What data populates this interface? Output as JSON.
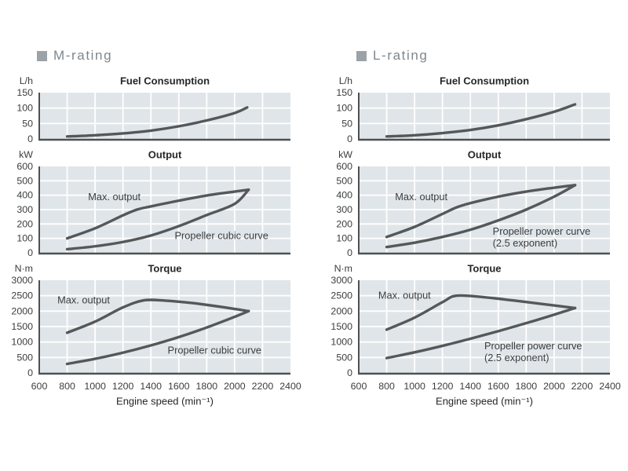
{
  "sections": [
    {
      "header": "M-rating"
    },
    {
      "header": "L-rating"
    }
  ],
  "x_axis": {
    "title": "Engine speed (min⁻¹)",
    "min": 600,
    "max": 2400,
    "ticks": [
      600,
      800,
      1000,
      1200,
      1400,
      1600,
      1800,
      2000,
      2200,
      2400
    ]
  },
  "colors": {
    "plot_bg": "#e0e5e9",
    "grid": "#ffffff",
    "curve": "#54585a",
    "axis": "#4d5153",
    "title": "#242628",
    "tick": "#3a3d3f",
    "annotation": "#3a3d3f",
    "header_text": "#7e878d",
    "header_marker": "#9ba3a9"
  },
  "chart_data": [
    {
      "id": "m-fuel",
      "column": "M-rating",
      "row": 0,
      "type": "line",
      "title": "Fuel Consumption",
      "ylabel": "L/h",
      "xlabel": "Engine speed (min⁻¹)",
      "ylim": [
        0,
        150
      ],
      "yticks": [
        0,
        50,
        100,
        150
      ],
      "xlim": [
        600,
        2400
      ],
      "grid": true,
      "series": [
        {
          "key": "fuel_consumption",
          "name": "Fuel consumption",
          "points": [
            [
              800,
              8
            ],
            [
              1000,
              12
            ],
            [
              1200,
              18
            ],
            [
              1400,
              27
            ],
            [
              1600,
              41
            ],
            [
              1800,
              60
            ],
            [
              2000,
              84
            ],
            [
              2090,
              102
            ]
          ]
        }
      ],
      "annotations": []
    },
    {
      "id": "m-output",
      "column": "M-rating",
      "row": 1,
      "type": "line",
      "title": "Output",
      "ylabel": "kW",
      "xlabel": "Engine speed (min⁻¹)",
      "ylim": [
        0,
        600
      ],
      "yticks": [
        0,
        100,
        200,
        300,
        400,
        500,
        600
      ],
      "xlim": [
        600,
        2400
      ],
      "grid": true,
      "series": [
        {
          "key": "max_output",
          "name": "Max. output",
          "points": [
            [
              800,
              100
            ],
            [
              1000,
              170
            ],
            [
              1200,
              260
            ],
            [
              1300,
              300
            ],
            [
              1400,
              322
            ],
            [
              1600,
              362
            ],
            [
              1800,
              398
            ],
            [
              2000,
              425
            ],
            [
              2100,
              438
            ]
          ]
        },
        {
          "key": "propeller_cubic",
          "name": "Propeller cubic curve",
          "points": [
            [
              800,
              25
            ],
            [
              1000,
              45
            ],
            [
              1200,
              75
            ],
            [
              1400,
              120
            ],
            [
              1600,
              185
            ],
            [
              1800,
              262
            ],
            [
              2000,
              340
            ],
            [
              2100,
              438
            ]
          ]
        }
      ],
      "annotations": [
        {
          "lines": [
            "Max. output"
          ],
          "x": 950,
          "y": 390
        },
        {
          "lines": [
            "Propeller cubic curve"
          ],
          "x": 1570,
          "y": 120
        }
      ]
    },
    {
      "id": "m-torque",
      "column": "M-rating",
      "row": 2,
      "type": "line",
      "title": "Torque",
      "ylabel": "N·m",
      "xlabel": "Engine speed (min⁻¹)",
      "ylim": [
        0,
        3000
      ],
      "yticks": [
        0,
        500,
        1000,
        1500,
        2000,
        2500,
        3000
      ],
      "xlim": [
        600,
        2400
      ],
      "grid": true,
      "series": [
        {
          "key": "max_output",
          "name": "Max. output",
          "points": [
            [
              800,
              1300
            ],
            [
              1000,
              1660
            ],
            [
              1200,
              2120
            ],
            [
              1350,
              2350
            ],
            [
              1500,
              2340
            ],
            [
              1700,
              2260
            ],
            [
              1900,
              2140
            ],
            [
              2100,
              2000
            ]
          ]
        },
        {
          "key": "propeller_cubic",
          "name": "Propeller cubic curve",
          "points": [
            [
              800,
              290
            ],
            [
              1000,
              455
            ],
            [
              1200,
              655
            ],
            [
              1400,
              890
            ],
            [
              1600,
              1160
            ],
            [
              1800,
              1470
            ],
            [
              2000,
              1815
            ],
            [
              2100,
              2000
            ]
          ]
        }
      ],
      "annotations": [
        {
          "lines": [
            "Max. output"
          ],
          "x": 730,
          "y": 2360
        },
        {
          "lines": [
            "Propeller cubic curve"
          ],
          "x": 1520,
          "y": 740
        }
      ]
    },
    {
      "id": "l-fuel",
      "column": "L-rating",
      "row": 0,
      "type": "line",
      "title": "Fuel Consumption",
      "ylabel": "L/h",
      "xlabel": "Engine speed (min⁻¹)",
      "ylim": [
        0,
        150
      ],
      "yticks": [
        0,
        50,
        100,
        150
      ],
      "xlim": [
        600,
        2400
      ],
      "grid": true,
      "series": [
        {
          "key": "fuel_consumption",
          "name": "Fuel consumption",
          "points": [
            [
              800,
              8
            ],
            [
              1000,
              12
            ],
            [
              1200,
              19
            ],
            [
              1400,
              29
            ],
            [
              1600,
              44
            ],
            [
              1800,
              64
            ],
            [
              2000,
              88
            ],
            [
              2150,
              112
            ]
          ]
        }
      ],
      "annotations": []
    },
    {
      "id": "l-output",
      "column": "L-rating",
      "row": 1,
      "type": "line",
      "title": "Output",
      "ylabel": "kW",
      "xlabel": "Engine speed (min⁻¹)",
      "ylim": [
        0,
        600
      ],
      "yticks": [
        0,
        100,
        200,
        300,
        400,
        500,
        600
      ],
      "xlim": [
        600,
        2400
      ],
      "grid": true,
      "series": [
        {
          "key": "max_output",
          "name": "Max. output",
          "points": [
            [
              800,
              110
            ],
            [
              1000,
              180
            ],
            [
              1200,
              270
            ],
            [
              1300,
              315
            ],
            [
              1400,
              345
            ],
            [
              1600,
              390
            ],
            [
              1800,
              425
            ],
            [
              2000,
              452
            ],
            [
              2150,
              470
            ]
          ]
        },
        {
          "key": "propeller_power",
          "name": "Propeller power curve (2.5 exponent)",
          "points": [
            [
              800,
              40
            ],
            [
              1000,
              70
            ],
            [
              1200,
              110
            ],
            [
              1400,
              160
            ],
            [
              1600,
              225
            ],
            [
              1800,
              300
            ],
            [
              2000,
              390
            ],
            [
              2150,
              470
            ]
          ]
        }
      ],
      "annotations": [
        {
          "lines": [
            "Max. output"
          ],
          "x": 860,
          "y": 390
        },
        {
          "lines": [
            "Propeller power curve",
            "(2.5 exponent)"
          ],
          "x": 1560,
          "y": 150
        }
      ]
    },
    {
      "id": "l-torque",
      "column": "L-rating",
      "row": 2,
      "type": "line",
      "title": "Torque",
      "ylabel": "N·m",
      "xlabel": "Engine speed (min⁻¹)",
      "ylim": [
        0,
        3000
      ],
      "yticks": [
        0,
        500,
        1000,
        1500,
        2000,
        2500,
        3000
      ],
      "xlim": [
        600,
        2400
      ],
      "grid": true,
      "series": [
        {
          "key": "max_output",
          "name": "Max. output",
          "points": [
            [
              800,
              1400
            ],
            [
              1000,
              1790
            ],
            [
              1200,
              2290
            ],
            [
              1300,
              2500
            ],
            [
              1500,
              2450
            ],
            [
              1700,
              2350
            ],
            [
              1900,
              2240
            ],
            [
              2150,
              2100
            ]
          ]
        },
        {
          "key": "propeller_power",
          "name": "Propeller power curve (2.5 exponent)",
          "points": [
            [
              800,
              480
            ],
            [
              1000,
              665
            ],
            [
              1200,
              875
            ],
            [
              1400,
              1105
            ],
            [
              1600,
              1350
            ],
            [
              1800,
              1610
            ],
            [
              2000,
              1885
            ],
            [
              2150,
              2100
            ]
          ]
        }
      ],
      "annotations": [
        {
          "lines": [
            "Max. output"
          ],
          "x": 740,
          "y": 2520
        },
        {
          "lines": [
            "Propeller power curve",
            "(2.5 exponent)"
          ],
          "x": 1500,
          "y": 880
        }
      ]
    }
  ]
}
